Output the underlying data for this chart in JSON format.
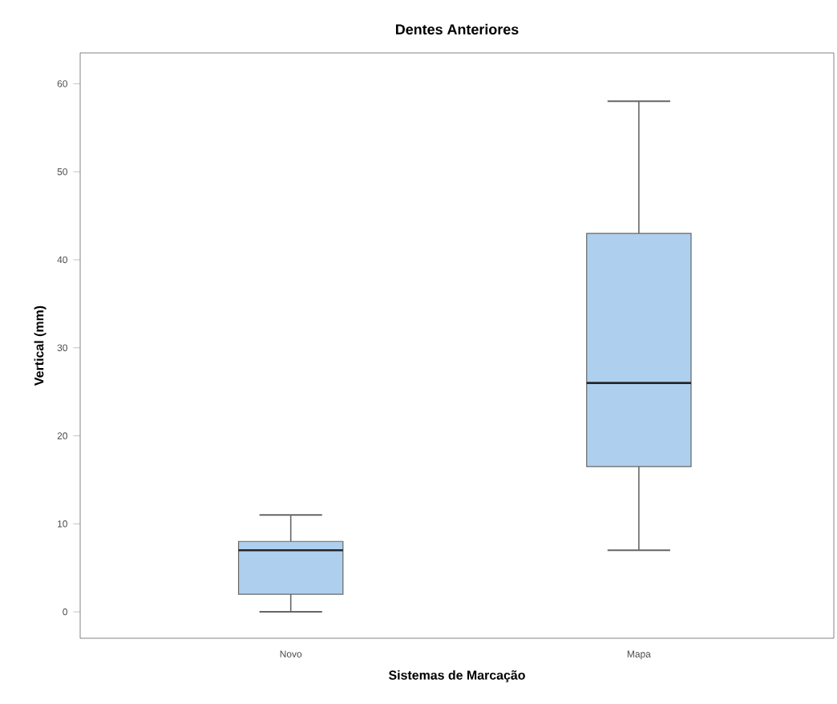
{
  "chart_data": {
    "type": "box",
    "title": "Dentes Anteriores",
    "xlabel": "Sistemas de Marcação",
    "ylabel": "Vertical (mm)",
    "categories": [
      "Novo",
      "Mapa"
    ],
    "boxes": [
      {
        "low": 0,
        "q1": 2,
        "median": 7,
        "q3": 8,
        "high": 11
      },
      {
        "low": 7,
        "q1": 16.5,
        "median": 26,
        "q3": 43,
        "high": 58
      }
    ],
    "color": "#aed0ee",
    "ylim": [
      -3,
      63.5
    ],
    "yticks": [
      0,
      10,
      20,
      30,
      40,
      50,
      60
    ],
    "grid": false
  }
}
